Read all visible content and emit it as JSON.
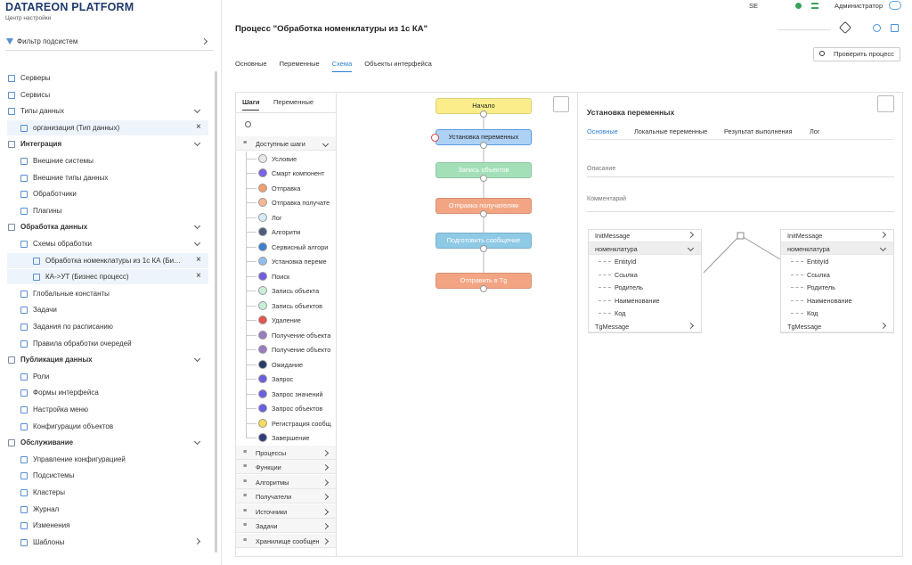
{
  "header": {
    "brand": "DATAREON PLATFORM",
    "subtitle": "Центр настройки",
    "instance": "SE",
    "user": "Администратор"
  },
  "sidebar": {
    "filter": "Фильтр подсистем",
    "sections": [
      {
        "items": [
          {
            "label": "Серверы"
          },
          {
            "label": "Сервисы"
          },
          {
            "label": "Типы данных",
            "open_items": [
              "организация (Тип данных)"
            ]
          }
        ]
      },
      {
        "title": "Интеграция",
        "items": [
          {
            "label": "Внешние системы"
          },
          {
            "label": "Внешние типы данных"
          },
          {
            "label": "Обработчики"
          },
          {
            "label": "Плагины"
          }
        ]
      },
      {
        "title": "Обработка данных",
        "items": [
          {
            "label": "Схемы обработки",
            "open_items": [
              "Обработка номенклатуры из 1с КА (Би…",
              "КА->УТ (Бизнес процесс)"
            ]
          },
          {
            "label": "Глобальные константы"
          },
          {
            "label": "Задачи"
          },
          {
            "label": "Задания по расписанию"
          },
          {
            "label": "Правила обработки очередей"
          }
        ]
      },
      {
        "title": "Публикация данных",
        "items": [
          {
            "label": "Роли"
          },
          {
            "label": "Формы интерфейса"
          },
          {
            "label": "Настройка меню"
          },
          {
            "label": "Конфигурации объектов"
          }
        ]
      },
      {
        "title": "Обслуживание",
        "items": [
          {
            "label": "Управление конфигурацией"
          },
          {
            "label": "Подсистемы"
          },
          {
            "label": "Кластеры"
          },
          {
            "label": "Журнал"
          },
          {
            "label": "Изменения"
          },
          {
            "label": "Шаблоны",
            "collapsed": true
          }
        ]
      }
    ]
  },
  "process": {
    "title": "Процесс \"Обработка номенклатуры из 1с КА\"",
    "check_button": "Проверить процесс",
    "tabs": [
      "Основные",
      "Переменные",
      "Схема",
      "Объекты интерфейса"
    ],
    "active_tab": 2
  },
  "steps_panel": {
    "tabs": [
      "Шаги",
      "Переменные"
    ],
    "active_tab": 0,
    "groups": [
      {
        "label": "Доступные шаги",
        "steps": [
          {
            "label": "Условие",
            "color": "#e8e8e8"
          },
          {
            "label": "Смарт компонент",
            "color": "#7b61e8"
          },
          {
            "label": "Отправка",
            "color": "#f5a06e"
          },
          {
            "label": "Отправка получате",
            "color": "#f5b890"
          },
          {
            "label": "Лог",
            "color": "#d6ebf8"
          },
          {
            "label": "Алгоритм",
            "color": "#4d5d7a"
          },
          {
            "label": "Сервисный алгори",
            "color": "#3f7fd0"
          },
          {
            "label": "Установка переме",
            "color": "#8fbfef"
          },
          {
            "label": "Поиск",
            "color": "#6f5ee0"
          },
          {
            "label": "Запись объекта",
            "color": "#c9eed7"
          },
          {
            "label": "Запись объектов",
            "color": "#c9eed7"
          },
          {
            "label": "Удаление",
            "color": "#e5544f"
          },
          {
            "label": "Получение объекта",
            "color": "#9a7cc0"
          },
          {
            "label": "Получение объекто",
            "color": "#9a7cc0"
          },
          {
            "label": "Ожидание",
            "color": "#283a6a"
          },
          {
            "label": "Запрос",
            "color": "#6a5fe0"
          },
          {
            "label": "Запрос значений",
            "color": "#6a5fe0"
          },
          {
            "label": "Запрос объектов",
            "color": "#6a5fe0"
          },
          {
            "label": "Регистрация сообщ",
            "color": "#f7dc5a"
          },
          {
            "label": "Завершение",
            "color": "#2f3e7a"
          }
        ]
      },
      {
        "label": "Процессы"
      },
      {
        "label": "Функции"
      },
      {
        "label": "Алгоритмы"
      },
      {
        "label": "Получатели"
      },
      {
        "label": "Источники"
      },
      {
        "label": "Задачи"
      },
      {
        "label": "Хранилище сообщен"
      }
    ]
  },
  "schema": {
    "nodes": [
      {
        "label": "Начало",
        "color": "#fbee8a"
      },
      {
        "label": "Установка переменных",
        "color": "#aed2f6"
      },
      {
        "label": "Запись объектов",
        "color": "#a3e0b8"
      },
      {
        "label": "Отправка получателям",
        "color": "#f3a583"
      },
      {
        "label": "Подготовить сообщение",
        "color": "#8ec9e6"
      },
      {
        "label": "Отправить в Tg",
        "color": "#f3a583"
      }
    ],
    "selected": 1
  },
  "properties": {
    "title": "Установка переменных",
    "tabs": [
      "Основные",
      "Локальные переменные",
      "Результат выполнения",
      "Лог"
    ],
    "active_tab": 0,
    "fields": [
      "Описание",
      "Комментарий"
    ],
    "trees": [
      {
        "items": [
          {
            "label": "InitMessage"
          },
          {
            "label": "номенклатура",
            "children": [
              "EntityId",
              "Ссылка",
              "Родитель",
              "Наименование",
              "Код"
            ]
          },
          {
            "label": "TgMessage"
          }
        ]
      },
      {
        "items": [
          {
            "label": "InitMessage"
          },
          {
            "label": "номенклатура",
            "children": [
              "EntityId",
              "Ссылка",
              "Родитель",
              "Наименование",
              "Код"
            ]
          },
          {
            "label": "TgMessage"
          }
        ]
      }
    ]
  }
}
